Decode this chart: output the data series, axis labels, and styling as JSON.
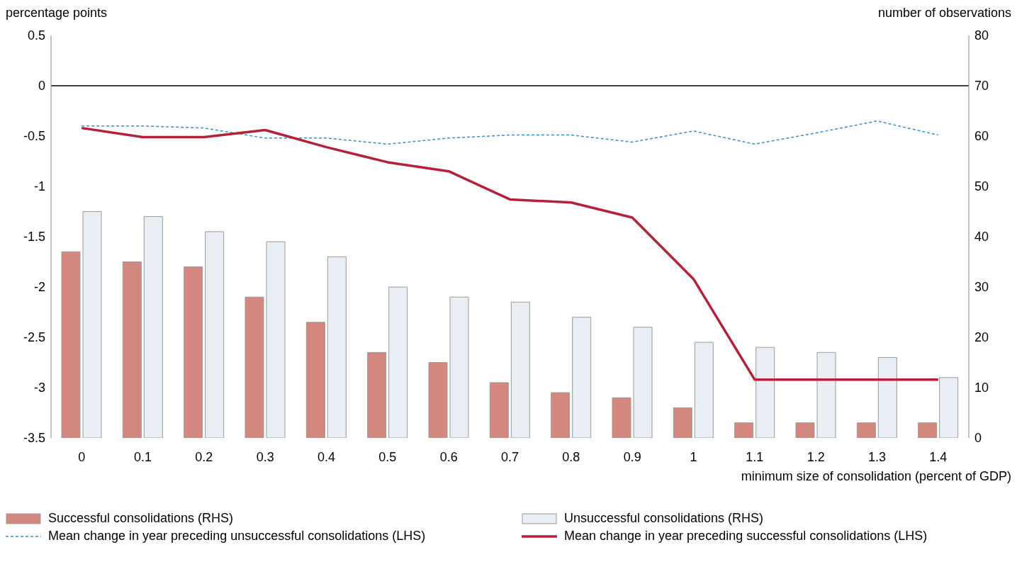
{
  "chart_data": {
    "type": "bar",
    "xlabel": "minimum size of consolidation (percent of GDP)",
    "ylabel": "percentage points",
    "y2label": "number of observations",
    "categories": [
      "0",
      "0.1",
      "0.2",
      "0.3",
      "0.4",
      "0.5",
      "0.6",
      "0.7",
      "0.8",
      "0.9",
      "1",
      "1.1",
      "1.2",
      "1.3",
      "1.4"
    ],
    "series": [
      {
        "name": "Successful consolidations (RHS)",
        "axis": "y2",
        "color": "#d4877f",
        "values": [
          37,
          35,
          34,
          28,
          23,
          17,
          15,
          11,
          9,
          8,
          6,
          3,
          3,
          3,
          3
        ]
      },
      {
        "name": "Unsuccessful consolidations (RHS)",
        "axis": "y2",
        "color": "#e8eef3",
        "values": [
          45,
          44,
          41,
          39,
          36,
          30,
          28,
          27,
          24,
          22,
          19,
          18,
          17,
          16,
          12
        ]
      },
      {
        "name": "Mean change in year preceding unsuccessful consolidations (LHS)",
        "type": "line",
        "axis": "y",
        "color": "#3a8fc4",
        "line_style": "dashed",
        "values": [
          -0.4,
          -0.4,
          -0.42,
          -0.52,
          -0.52,
          -0.58,
          -0.52,
          -0.49,
          -0.49,
          -0.56,
          -0.45,
          -0.58,
          -0.47,
          -0.35,
          -0.49
        ]
      },
      {
        "name": "Mean change in year preceding successful consolidations (LHS)",
        "type": "line",
        "axis": "y",
        "color": "#b5203b",
        "line_style": "solid",
        "values": [
          -0.42,
          -0.51,
          -0.51,
          -0.44,
          -0.61,
          -0.76,
          -0.85,
          -1.13,
          -1.16,
          -1.31,
          -1.92,
          -2.92,
          -2.92,
          -2.92,
          -2.92
        ]
      }
    ],
    "ylim": [
      -3.5,
      0.5
    ],
    "yticks": [
      0.5,
      0,
      -0.5,
      -1,
      -1.5,
      -2,
      -2.5,
      -3,
      -3.5
    ],
    "y2lim": [
      0,
      80
    ],
    "y2ticks": [
      0,
      10,
      20,
      30,
      40,
      50,
      60,
      70,
      80
    ],
    "ref_lines": [
      {
        "axis": "y",
        "value": 0,
        "color": "#000000"
      }
    ],
    "grid": false,
    "legend": "bottom"
  }
}
